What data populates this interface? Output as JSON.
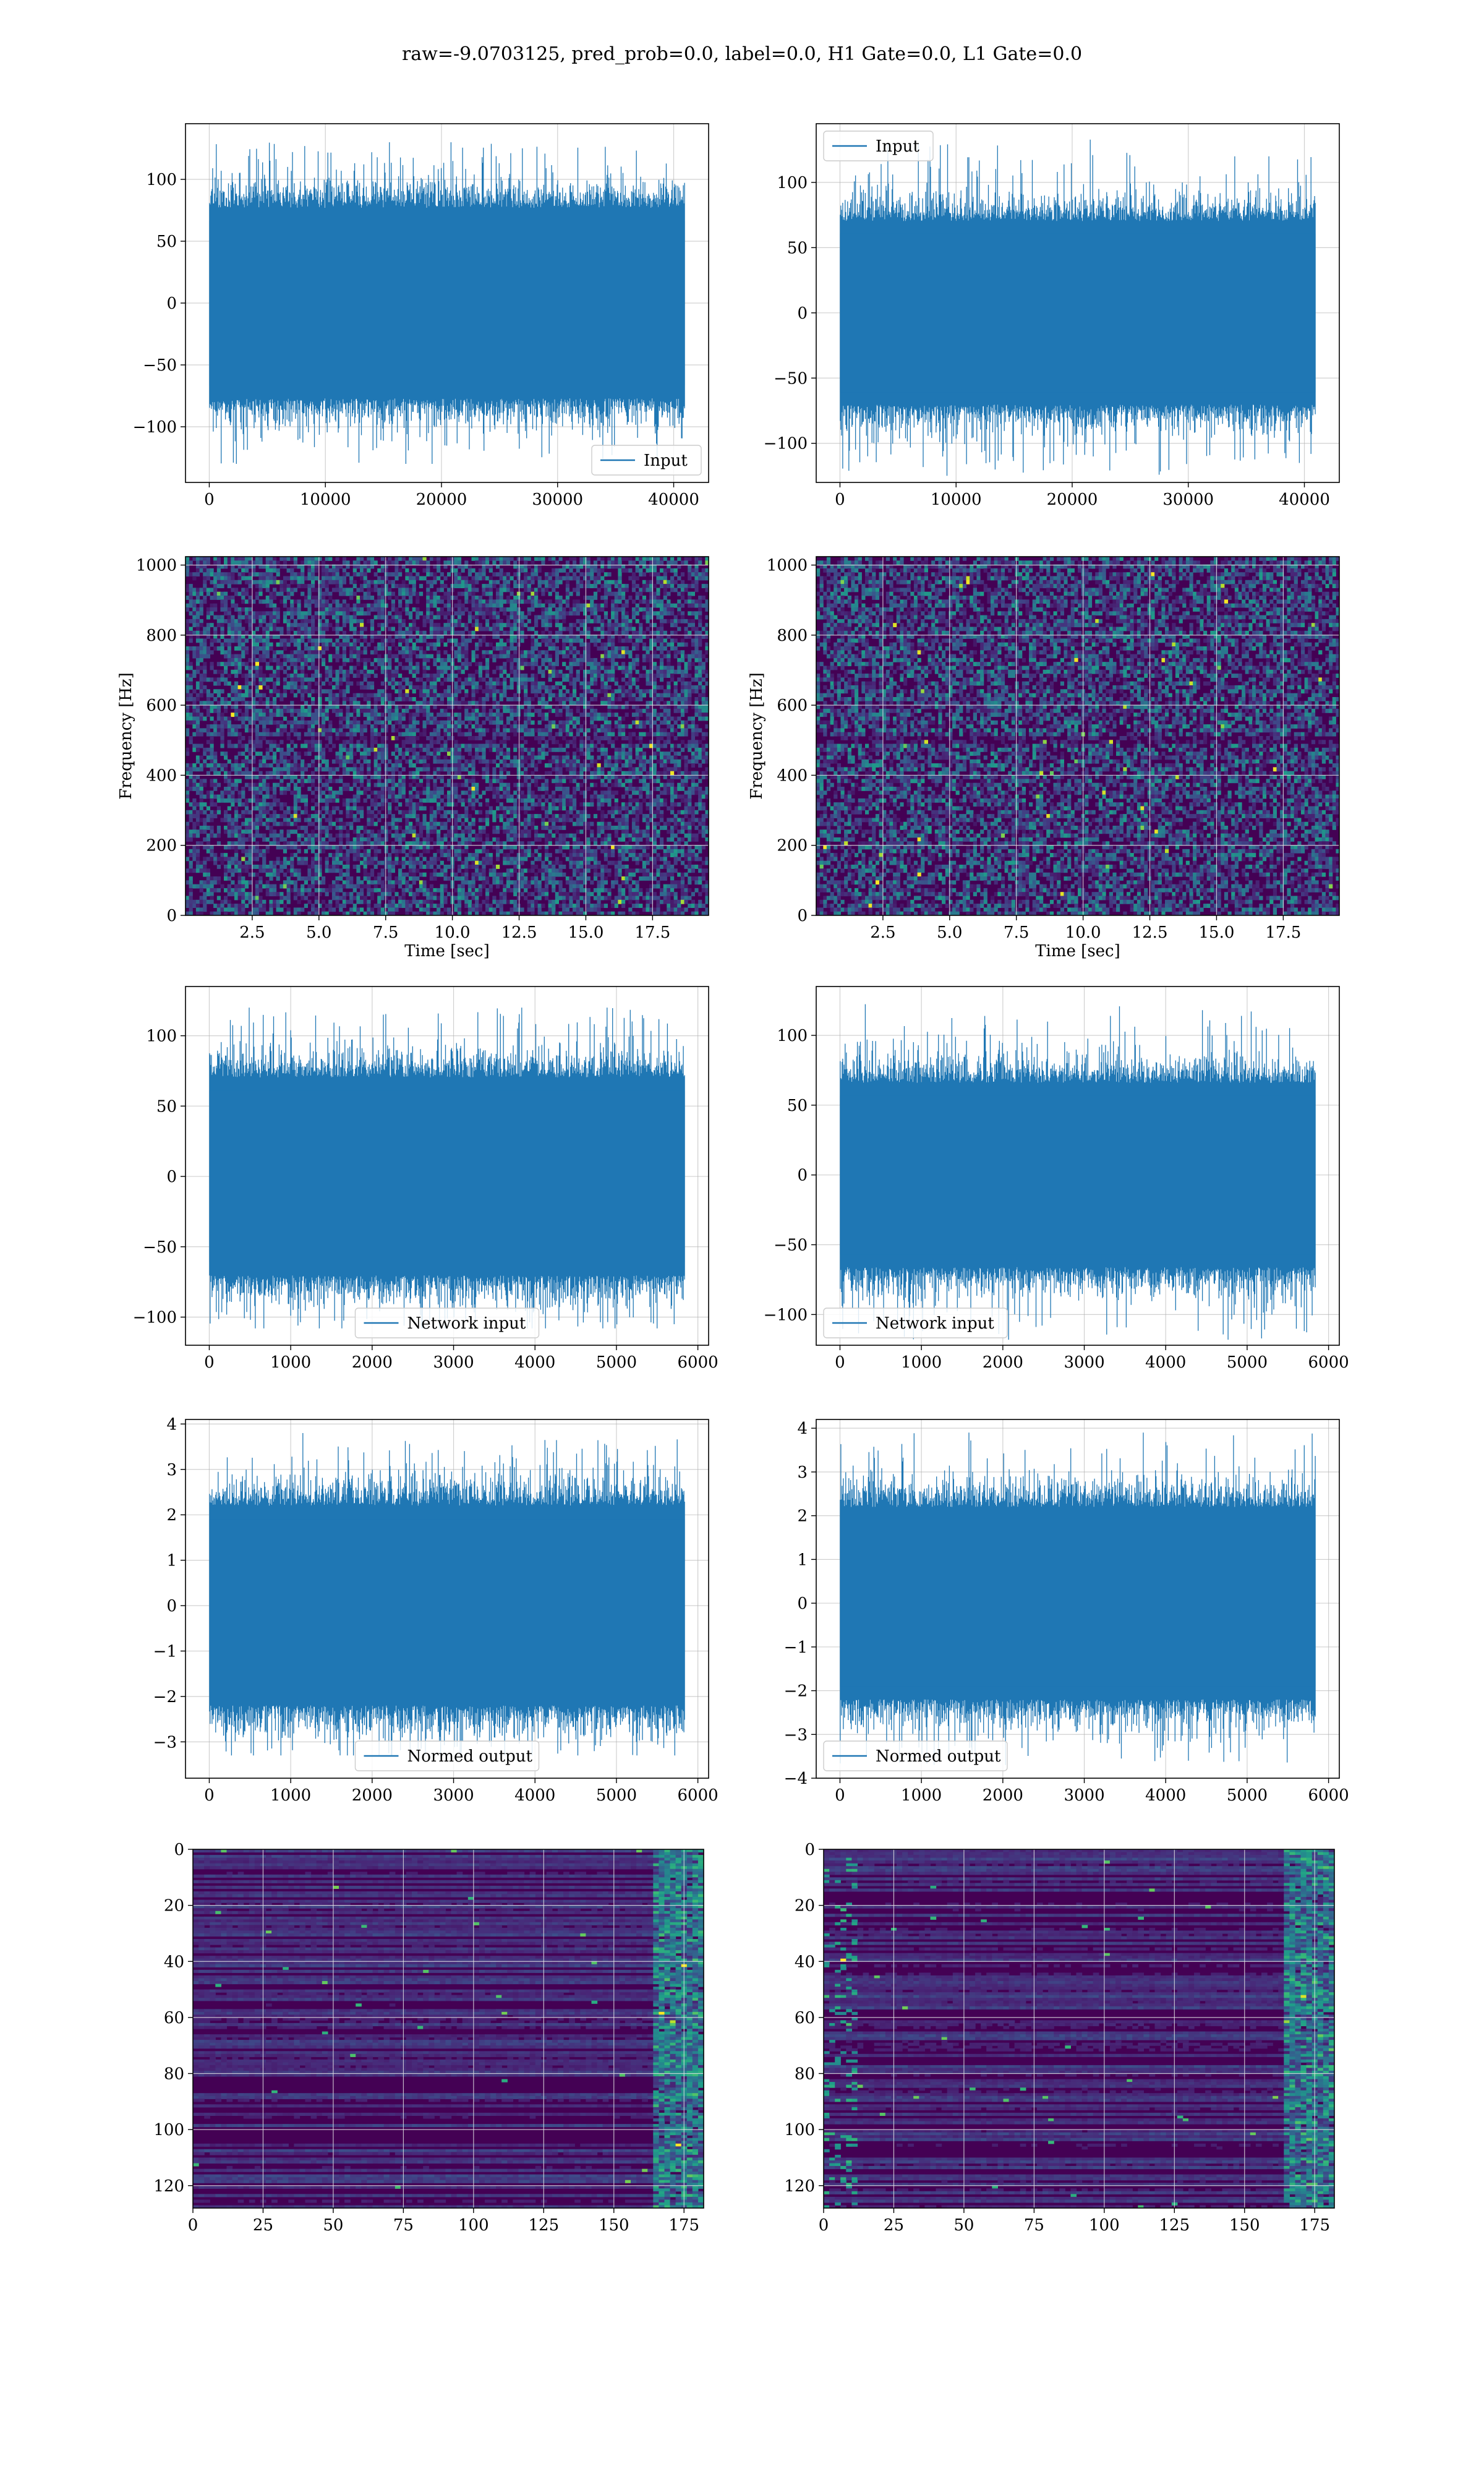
{
  "figure": {
    "title": "raw=-9.0703125, pred_prob=0.0, label=0.0, H1 Gate=0.0, L1 Gate=0.0"
  },
  "colors": {
    "line": "#1f77b4",
    "grid": "#b0b0b0",
    "spec_grid": "#e6e6e6",
    "viridis_low": "#440154",
    "viridis_mid": "#21918c",
    "viridis_high": "#fde725"
  },
  "chart_data": [
    {
      "id": "strain-left",
      "type": "line",
      "series": [
        {
          "name": "Input",
          "n_points": 40960,
          "amplitude_core": 35,
          "peak_min": -130,
          "peak_max": 130
        }
      ],
      "xlim": [
        -2048,
        43008
      ],
      "ylim": [
        -145,
        145
      ],
      "xticks": [
        0,
        10000,
        20000,
        30000,
        40000
      ],
      "yticks": [
        -100,
        -50,
        0,
        50,
        100
      ],
      "legend": {
        "label": "Input",
        "loc": "lower right"
      },
      "xlabel": "",
      "ylabel": "",
      "grid": true
    },
    {
      "id": "strain-right",
      "type": "line",
      "series": [
        {
          "name": "Input",
          "n_points": 40960,
          "amplitude_core": 32,
          "peak_min": -125,
          "peak_max": 133
        }
      ],
      "xlim": [
        -2048,
        43008
      ],
      "ylim": [
        -130,
        145
      ],
      "xticks": [
        0,
        10000,
        20000,
        30000,
        40000
      ],
      "yticks": [
        -100,
        -50,
        0,
        50,
        100
      ],
      "legend": {
        "label": "Input",
        "loc": "upper left"
      },
      "xlabel": "",
      "ylabel": "",
      "grid": true
    },
    {
      "id": "spectrogram-left",
      "type": "heatmap",
      "xlim": [
        0,
        19.6
      ],
      "ylim": [
        0,
        1024
      ],
      "xticks": [
        2.5,
        5.0,
        7.5,
        10.0,
        12.5,
        15.0,
        17.5
      ],
      "xtick_labels": [
        "2.5",
        "5.0",
        "7.5",
        "10.0",
        "12.5",
        "15.0",
        "17.5"
      ],
      "yticks": [
        0,
        200,
        400,
        600,
        800,
        1000
      ],
      "xlabel": "Time [sec]",
      "ylabel": "Frequency [Hz]",
      "grid": true,
      "colormap": "viridis"
    },
    {
      "id": "spectrogram-right",
      "type": "heatmap",
      "xlim": [
        0,
        19.6
      ],
      "ylim": [
        0,
        1024
      ],
      "xticks": [
        2.5,
        5.0,
        7.5,
        10.0,
        12.5,
        15.0,
        17.5
      ],
      "xtick_labels": [
        "2.5",
        "5.0",
        "7.5",
        "10.0",
        "12.5",
        "15.0",
        "17.5"
      ],
      "yticks": [
        0,
        200,
        400,
        600,
        800,
        1000
      ],
      "xlabel": "Time [sec]",
      "ylabel": "Frequency [Hz]",
      "grid": true,
      "colormap": "viridis"
    },
    {
      "id": "network-left",
      "type": "line",
      "series": [
        {
          "name": "Network input",
          "n_points": 5840,
          "amplitude_core": 32,
          "peak_min": -108,
          "peak_max": 120
        }
      ],
      "xlim": [
        -292,
        6132
      ],
      "ylim": [
        -120,
        135
      ],
      "xticks": [
        0,
        1000,
        2000,
        3000,
        4000,
        5000,
        6000
      ],
      "yticks": [
        -100,
        -50,
        0,
        50,
        100
      ],
      "legend": {
        "label": "Network input",
        "loc": "lower center"
      },
      "xlabel": "",
      "ylabel": "",
      "grid": true
    },
    {
      "id": "network-right",
      "type": "line",
      "series": [
        {
          "name": "Network input",
          "n_points": 5840,
          "amplitude_core": 30,
          "peak_min": -118,
          "peak_max": 123
        }
      ],
      "xlim": [
        -292,
        6132
      ],
      "ylim": [
        -122,
        135
      ],
      "xticks": [
        0,
        1000,
        2000,
        3000,
        4000,
        5000,
        6000
      ],
      "yticks": [
        -100,
        -50,
        0,
        50,
        100
      ],
      "legend": {
        "label": "Network input",
        "loc": "lower left"
      },
      "xlabel": "",
      "ylabel": "",
      "grid": true
    },
    {
      "id": "normed-left",
      "type": "line",
      "series": [
        {
          "name": "Normed output",
          "n_points": 5840,
          "amplitude_core": 1.0,
          "peak_min": -3.3,
          "peak_max": 3.8
        }
      ],
      "xlim": [
        -292,
        6132
      ],
      "ylim": [
        -3.8,
        4.1
      ],
      "xticks": [
        0,
        1000,
        2000,
        3000,
        4000,
        5000,
        6000
      ],
      "yticks": [
        -3,
        -2,
        -1,
        0,
        1,
        2,
        3,
        4
      ],
      "legend": {
        "label": "Normed output",
        "loc": "lower center"
      },
      "xlabel": "",
      "ylabel": "",
      "grid": true
    },
    {
      "id": "normed-right",
      "type": "line",
      "series": [
        {
          "name": "Normed output",
          "n_points": 5840,
          "amplitude_core": 1.0,
          "peak_min": -3.7,
          "peak_max": 3.9
        }
      ],
      "xlim": [
        -292,
        6132
      ],
      "ylim": [
        -4.0,
        4.2
      ],
      "xticks": [
        0,
        1000,
        2000,
        3000,
        4000,
        5000,
        6000
      ],
      "yticks": [
        -4,
        -3,
        -2,
        -1,
        0,
        1,
        2,
        3,
        4
      ],
      "legend": {
        "label": "Normed output",
        "loc": "lower left"
      },
      "xlabel": "",
      "ylabel": "",
      "grid": true
    },
    {
      "id": "features-left",
      "type": "heatmap",
      "rows": 128,
      "cols": 182,
      "xlim": [
        0,
        182
      ],
      "ylim": [
        128,
        0
      ],
      "xticks": [
        0,
        25,
        50,
        75,
        100,
        125,
        150,
        175
      ],
      "yticks": [
        0,
        20,
        40,
        60,
        80,
        100,
        120
      ],
      "xlabel": "",
      "ylabel": "",
      "grid": true,
      "colormap": "viridis",
      "y_inverted": true
    },
    {
      "id": "features-right",
      "type": "heatmap",
      "rows": 128,
      "cols": 182,
      "xlim": [
        0,
        182
      ],
      "ylim": [
        128,
        0
      ],
      "xticks": [
        0,
        25,
        50,
        75,
        100,
        125,
        150,
        175
      ],
      "yticks": [
        0,
        20,
        40,
        60,
        80,
        100,
        120
      ],
      "xlabel": "",
      "ylabel": "",
      "grid": true,
      "colormap": "viridis",
      "y_inverted": true
    }
  ]
}
